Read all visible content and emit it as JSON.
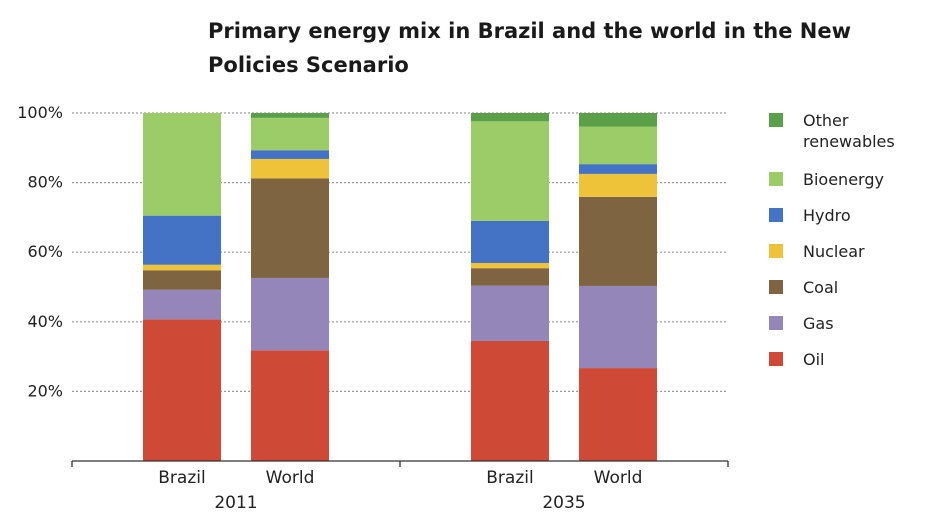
{
  "chart_data": {
    "type": "bar",
    "stacked": true,
    "title": "Primary energy mix in Brazil and the world in the New Policies Scenario",
    "xlabel": "",
    "ylabel": "",
    "ylim": [
      0,
      100
    ],
    "y_ticks": [
      "20%",
      "40%",
      "60%",
      "80%",
      "100%"
    ],
    "y_tick_values": [
      20,
      40,
      60,
      80,
      100
    ],
    "grid": true,
    "legend_position": "right",
    "groups": [
      "2011",
      "2035"
    ],
    "categories": [
      "Brazil",
      "World",
      "Brazil",
      "World"
    ],
    "category_group": [
      0,
      0,
      1,
      1
    ],
    "series": [
      {
        "name": "Oil",
        "color": "#cf4a36",
        "values": [
          40.7,
          31.8,
          34.5,
          26.7
        ]
      },
      {
        "name": "Gas",
        "color": "#9486b8",
        "values": [
          8.5,
          20.8,
          15.9,
          23.6
        ]
      },
      {
        "name": "Coal",
        "color": "#7e6440",
        "values": [
          5.6,
          28.6,
          5.0,
          25.6
        ]
      },
      {
        "name": "Nuclear",
        "color": "#eec33a",
        "values": [
          1.6,
          5.6,
          1.5,
          6.6
        ]
      },
      {
        "name": "Hydro",
        "color": "#4472c4",
        "values": [
          14.1,
          2.5,
          12.1,
          2.8
        ]
      },
      {
        "name": "Bioenergy",
        "color": "#9ccc68",
        "values": [
          29.5,
          9.3,
          28.6,
          10.8
        ]
      },
      {
        "name": "Other renewables",
        "color": "#5b9f48",
        "values": [
          0.0,
          1.4,
          2.4,
          3.9
        ]
      }
    ],
    "legend_lines": [
      [
        "Other",
        "renewables"
      ],
      [
        "Bioenergy"
      ],
      [
        "Hydro"
      ],
      [
        "Nuclear"
      ],
      [
        "Coal"
      ],
      [
        "Gas"
      ],
      [
        "Oil"
      ]
    ]
  }
}
